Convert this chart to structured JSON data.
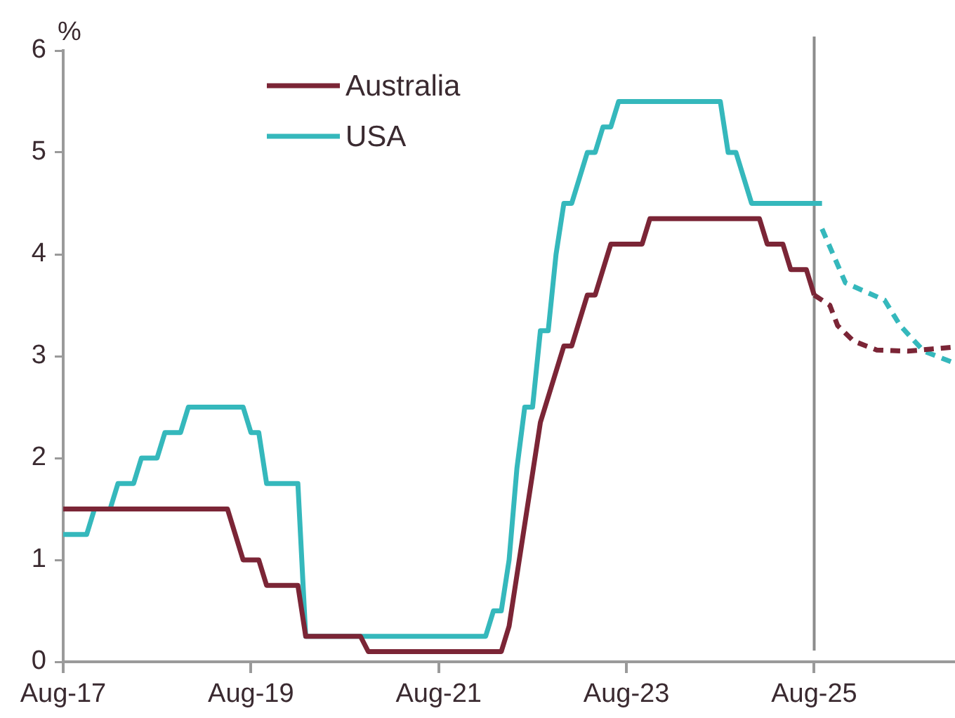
{
  "chart_data": {
    "type": "line",
    "ylabel": "%",
    "xlim": [
      "2017-08",
      "2027-02"
    ],
    "xticks": [
      {
        "value": "2017-08",
        "label": "Aug-17"
      },
      {
        "value": "2019-08",
        "label": "Aug-19"
      },
      {
        "value": "2021-08",
        "label": "Aug-21"
      },
      {
        "value": "2023-08",
        "label": "Aug-23"
      },
      {
        "value": "2025-08",
        "label": "Aug-25"
      }
    ],
    "ylim": [
      0,
      6
    ],
    "yticks": [
      0,
      1,
      2,
      3,
      4,
      5,
      6
    ],
    "grid": false,
    "legend": "top left",
    "marker": "none",
    "ref_lines": [
      {
        "axis": "x",
        "value": "2025-08",
        "color": "#8c8c8c"
      }
    ],
    "series": [
      {
        "name": "Australia",
        "color": "#7b2536",
        "line_style": "solid",
        "x": [
          "2017-08",
          "2019-05",
          "2019-07",
          "2019-09",
          "2019-10",
          "2020-02",
          "2020-03",
          "2020-10",
          "2020-11",
          "2022-04",
          "2022-05",
          "2022-09",
          "2022-12",
          "2023-01",
          "2023-03",
          "2023-04",
          "2023-06",
          "2023-10",
          "2023-11",
          "2025-01",
          "2025-02",
          "2025-04",
          "2025-05",
          "2025-07",
          "2025-08"
        ],
        "values": [
          1.5,
          1.5,
          1.0,
          1.0,
          0.75,
          0.75,
          0.25,
          0.25,
          0.1,
          0.1,
          0.35,
          2.35,
          3.1,
          3.1,
          3.6,
          3.6,
          4.1,
          4.1,
          4.35,
          4.35,
          4.1,
          4.1,
          3.85,
          3.85,
          3.6
        ]
      },
      {
        "name": "USA",
        "color": "#35b8bc",
        "line_style": "solid",
        "x": [
          "2017-08",
          "2017-11",
          "2017-12",
          "2018-02",
          "2018-03",
          "2018-05",
          "2018-06",
          "2018-08",
          "2018-09",
          "2018-11",
          "2018-12",
          "2019-07",
          "2019-08",
          "2019-09",
          "2019-10",
          "2020-02",
          "2020-03",
          "2022-02",
          "2022-03",
          "2022-04",
          "2022-05",
          "2022-06",
          "2022-07",
          "2022-08",
          "2022-09",
          "2022-10",
          "2022-11",
          "2022-12",
          "2023-01",
          "2023-03",
          "2023-04",
          "2023-05",
          "2023-06",
          "2023-07",
          "2024-08",
          "2024-09",
          "2024-10",
          "2024-12",
          "2025-09"
        ],
        "values": [
          1.25,
          1.25,
          1.5,
          1.5,
          1.75,
          1.75,
          2.0,
          2.0,
          2.25,
          2.25,
          2.5,
          2.5,
          2.25,
          2.25,
          1.75,
          1.75,
          0.25,
          0.25,
          0.5,
          0.5,
          1.0,
          1.9,
          2.5,
          2.5,
          3.25,
          3.25,
          4.0,
          4.5,
          4.5,
          5.0,
          5.0,
          5.25,
          5.25,
          5.5,
          5.5,
          5.0,
          5.0,
          4.5,
          4.5
        ]
      },
      {
        "color": "#7b2536",
        "line_style": "dashed",
        "x": [
          "2025-08",
          "2025-10",
          "2025-11",
          "2026-01",
          "2026-04",
          "2026-08",
          "2027-02"
        ],
        "values": [
          3.6,
          3.5,
          3.3,
          3.15,
          3.06,
          3.05,
          3.09
        ]
      },
      {
        "color": "#35b8bc",
        "line_style": "dashed",
        "x": [
          "2025-09",
          "2025-12",
          "2026-05",
          "2026-07",
          "2026-10",
          "2027-02"
        ],
        "values": [
          4.25,
          3.72,
          3.55,
          3.3,
          3.05,
          2.93
        ]
      }
    ]
  }
}
